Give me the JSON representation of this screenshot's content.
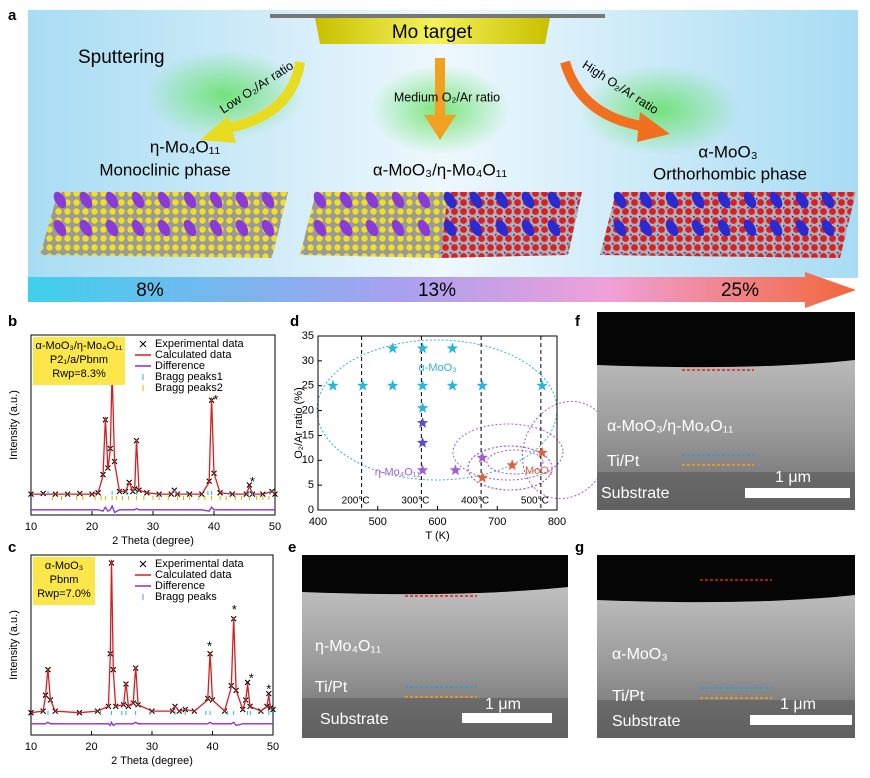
{
  "figure_a": {
    "panel": "a",
    "target": "Mo target",
    "process": "Sputtering",
    "low": "Low O₂/Ar ratio",
    "medium": "Medium O₂/Ar ratio",
    "high": "High O₂/Ar ratio",
    "left_phase": [
      "η-Mo₄O₁₁",
      "Monoclinic phase"
    ],
    "middle_phase": [
      "α-MoO₃/η-Mo₄O₁₁"
    ],
    "right_phase": [
      "α-MoO₃",
      "Orthorhombic phase"
    ],
    "ratios": [
      "8%",
      "13%",
      "25%"
    ]
  },
  "chart_data": [
    {
      "type": "line",
      "panel": "b",
      "xlabel": "2 Theta (degree)",
      "ylabel": "Intensity (a.u.)",
      "box": [
        "α-MoO₃/η-Mo₄O₁₁",
        "P2₁/a/Pbnm",
        "Rwp=8.3%"
      ],
      "xlim": [
        10,
        50
      ],
      "xticks": [
        10,
        20,
        30,
        40,
        50
      ],
      "ylim": [
        -10,
        128
      ],
      "x": [
        10,
        12,
        14,
        16,
        18,
        20,
        21,
        21.8,
        22.2,
        22.6,
        23.0,
        23.3,
        23.7,
        24.5,
        25.5,
        26.1,
        26.7,
        27.0,
        27.3,
        27.7,
        29,
        31,
        33,
        33.5,
        34,
        36,
        38,
        39.2,
        39.6,
        40.0,
        41,
        43,
        45.3,
        45.8,
        46.3,
        48,
        49.5,
        50
      ],
      "series": [
        {
          "name": "Experimental data",
          "color": "#000000",
          "marker": "x",
          "values": [
            6,
            6.5,
            6,
            6,
            6.5,
            6,
            7,
            21,
            63,
            26,
            41,
            98,
            31,
            8,
            8,
            15,
            8,
            10,
            47,
            9,
            7,
            6,
            6,
            9,
            6,
            6,
            6,
            16,
            78,
            22,
            7,
            6,
            6,
            13,
            6,
            6,
            8,
            6
          ]
        },
        {
          "name": "Calculated data",
          "color": "#d62020",
          "values": [
            6,
            6,
            6,
            6,
            6,
            6,
            7,
            20,
            65,
            25,
            40,
            100,
            30,
            8,
            8,
            15,
            8,
            10,
            48,
            9,
            7,
            6,
            6,
            9,
            6,
            6,
            6,
            15,
            80,
            22,
            7,
            6,
            6,
            12,
            6,
            6,
            8,
            6
          ]
        },
        {
          "name": "Difference",
          "color": "#8a2be2",
          "values": [
            -6,
            -6,
            -6,
            -6,
            -6,
            -6,
            -6,
            -7,
            -4,
            -7,
            -6,
            -3,
            -8,
            -6,
            -6,
            -6,
            -6,
            -6,
            -5,
            -6,
            -6,
            -6,
            -6,
            -6,
            -6,
            -6,
            -6,
            -7,
            -4,
            -6,
            -6,
            -6,
            -6,
            -6,
            -6,
            -6,
            -6,
            -6
          ]
        }
      ],
      "bragg": [
        {
          "name": "Bragg peaks1",
          "color": "#2bb5d8",
          "x": [
            12.8,
            23.3,
            25.7,
            27.3,
            33.7,
            35.5,
            39.0,
            39.6,
            42.5,
            45.7,
            46.3,
            49.2
          ]
        },
        {
          "name": "Bragg peaks2",
          "color": "#d8b400",
          "x": [
            13.5,
            15,
            17.5,
            18.5,
            20.5,
            21.5,
            22.2,
            23.3,
            24,
            25,
            26,
            27.3,
            28.5,
            30,
            31,
            32.5,
            34,
            35,
            36,
            37.5,
            38.5,
            39.6,
            41,
            42,
            43.5,
            44.5,
            45.8,
            47,
            48,
            49
          ]
        }
      ],
      "annotations": [
        {
          "text": "*",
          "x": 23.9,
          "y": 97
        },
        {
          "text": "*",
          "x": 40.3,
          "y": 80
        },
        {
          "text": "*",
          "x": 46.3,
          "y": 17
        }
      ]
    },
    {
      "type": "line",
      "panel": "c",
      "xlabel": "2 Theta (degree)",
      "ylabel": "Intensity (a.u.)",
      "box": [
        "α-MoO₃",
        "Pbnm",
        "Rwp=7.0%"
      ],
      "xlim": [
        10,
        50
      ],
      "xticks": [
        10,
        20,
        30,
        40,
        50
      ],
      "ylim": [
        -10,
        103
      ],
      "x": [
        10,
        12,
        12.4,
        12.8,
        13.2,
        14,
        18,
        21,
        22.8,
        23.1,
        23.3,
        23.6,
        24,
        25.3,
        25.7,
        26.1,
        26.9,
        27.3,
        27.7,
        30,
        33.4,
        33.8,
        34.5,
        35.5,
        37,
        39.2,
        39.6,
        40,
        42,
        43.1,
        43.5,
        43.9,
        45,
        45.5,
        45.8,
        46.2,
        48,
        49,
        49.3,
        49.6,
        50
      ],
      "series": [
        {
          "name": "Experimental data",
          "color": "#000000",
          "marker": "x",
          "values": [
            4,
            5,
            15,
            31,
            12,
            5,
            4,
            5,
            8,
            41,
            98,
            31,
            8,
            9,
            22,
            8,
            10,
            32,
            9,
            5,
            5,
            8,
            5,
            6,
            5,
            13,
            41,
            12,
            5,
            21,
            63,
            18,
            6,
            12,
            23,
            8,
            5,
            8,
            16,
            7,
            6
          ]
        },
        {
          "name": "Calculated data",
          "color": "#d62020",
          "values": [
            4,
            5,
            14,
            32,
            12,
            5,
            4,
            5,
            8,
            40,
            100,
            30,
            8,
            9,
            23,
            8,
            10,
            33,
            9,
            5,
            5,
            8,
            5,
            6,
            5,
            12,
            42,
            12,
            5,
            20,
            64,
            18,
            6,
            12,
            22,
            8,
            5,
            8,
            15,
            7,
            6
          ]
        },
        {
          "name": "Difference",
          "color": "#8a2be2",
          "values": [
            -3,
            -3,
            -3,
            -2,
            -3,
            -3,
            -3,
            -3,
            -3,
            -4,
            -2,
            -4,
            -3,
            -3,
            -3,
            -3,
            -3,
            -2,
            -3,
            -3,
            -3,
            -3,
            -3,
            -3,
            -3,
            -3,
            -2,
            -3,
            -3,
            -3,
            -2,
            -4,
            -3,
            -3,
            -3,
            -3,
            -3,
            -3,
            -3,
            -3,
            -3
          ]
        }
      ],
      "bragg": [
        {
          "name": "Bragg peaks",
          "color": "#2bb5d8",
          "x": [
            12.8,
            21.5,
            23.3,
            25.0,
            25.7,
            27.3,
            29.7,
            33.8,
            35.5,
            38.9,
            39.6,
            42.5,
            43.5,
            45.8,
            46.3,
            49.3,
            49.9
          ]
        }
      ],
      "annotations": [
        {
          "text": "*",
          "x": 39.5,
          "y": 47
        },
        {
          "text": "*",
          "x": 43.6,
          "y": 70
        },
        {
          "text": "*",
          "x": 46.4,
          "y": 27
        },
        {
          "text": "*",
          "x": 49.3,
          "y": 20
        }
      ]
    },
    {
      "type": "scatter",
      "panel": "d",
      "xlabel": "T (K)",
      "ylabel": "O₂/Ar ratio (%)",
      "xlim": [
        400,
        800
      ],
      "xticks": [
        400,
        500,
        600,
        700,
        800
      ],
      "ylim": [
        0,
        35
      ],
      "yticks": [
        0,
        5,
        10,
        15,
        20,
        25,
        30,
        35
      ],
      "series": [
        {
          "name": "α-MoO₃",
          "color": "#2bb5d8",
          "x": [
            425,
            475,
            525,
            525,
            575,
            575,
            575,
            625,
            625,
            675,
            775
          ],
          "values": [
            25,
            25,
            32.5,
            25,
            32.5,
            25,
            20.5,
            32.5,
            25,
            25,
            25
          ]
        },
        {
          "color": "#5a4fcf",
          "x": [
            575,
            575
          ],
          "values": [
            17.5,
            13.5
          ]
        },
        {
          "name": "η-Mo₄O₁₁",
          "color": "#a45bd6",
          "x": [
            575,
            630,
            675
          ],
          "values": [
            8,
            8,
            10.5
          ]
        },
        {
          "name": "MoO₂",
          "color": "#e0603a",
          "x": [
            675,
            725,
            775
          ],
          "values": [
            6.5,
            9,
            11.5
          ]
        }
      ],
      "label_pos": [
        [
          600,
          28.5
        ],
        null,
        [
          533,
          7.5
        ],
        [
          770,
          7.8
        ]
      ],
      "vlines": [
        {
          "x": 473,
          "label": "200°C"
        },
        {
          "x": 573,
          "label": "300°C"
        },
        {
          "x": 673,
          "label": "400°C"
        },
        {
          "x": 773,
          "label": "500°C"
        }
      ]
    }
  ],
  "sem": [
    {
      "panel": "f",
      "film": "α-MoO₃/η-Mo₄O₁₁",
      "interlayer": "Ti/Pt",
      "substrate": "Substrate",
      "scale": "1 μm"
    },
    {
      "panel": "e",
      "film": "η-Mo₄O₁₁",
      "interlayer": "Ti/Pt",
      "substrate": "Substrate",
      "scale": "1 μm"
    },
    {
      "panel": "g",
      "film": "α-MoO₃",
      "interlayer": "Ti/Pt",
      "substrate": "Substrate",
      "scale": "1 μm"
    }
  ]
}
